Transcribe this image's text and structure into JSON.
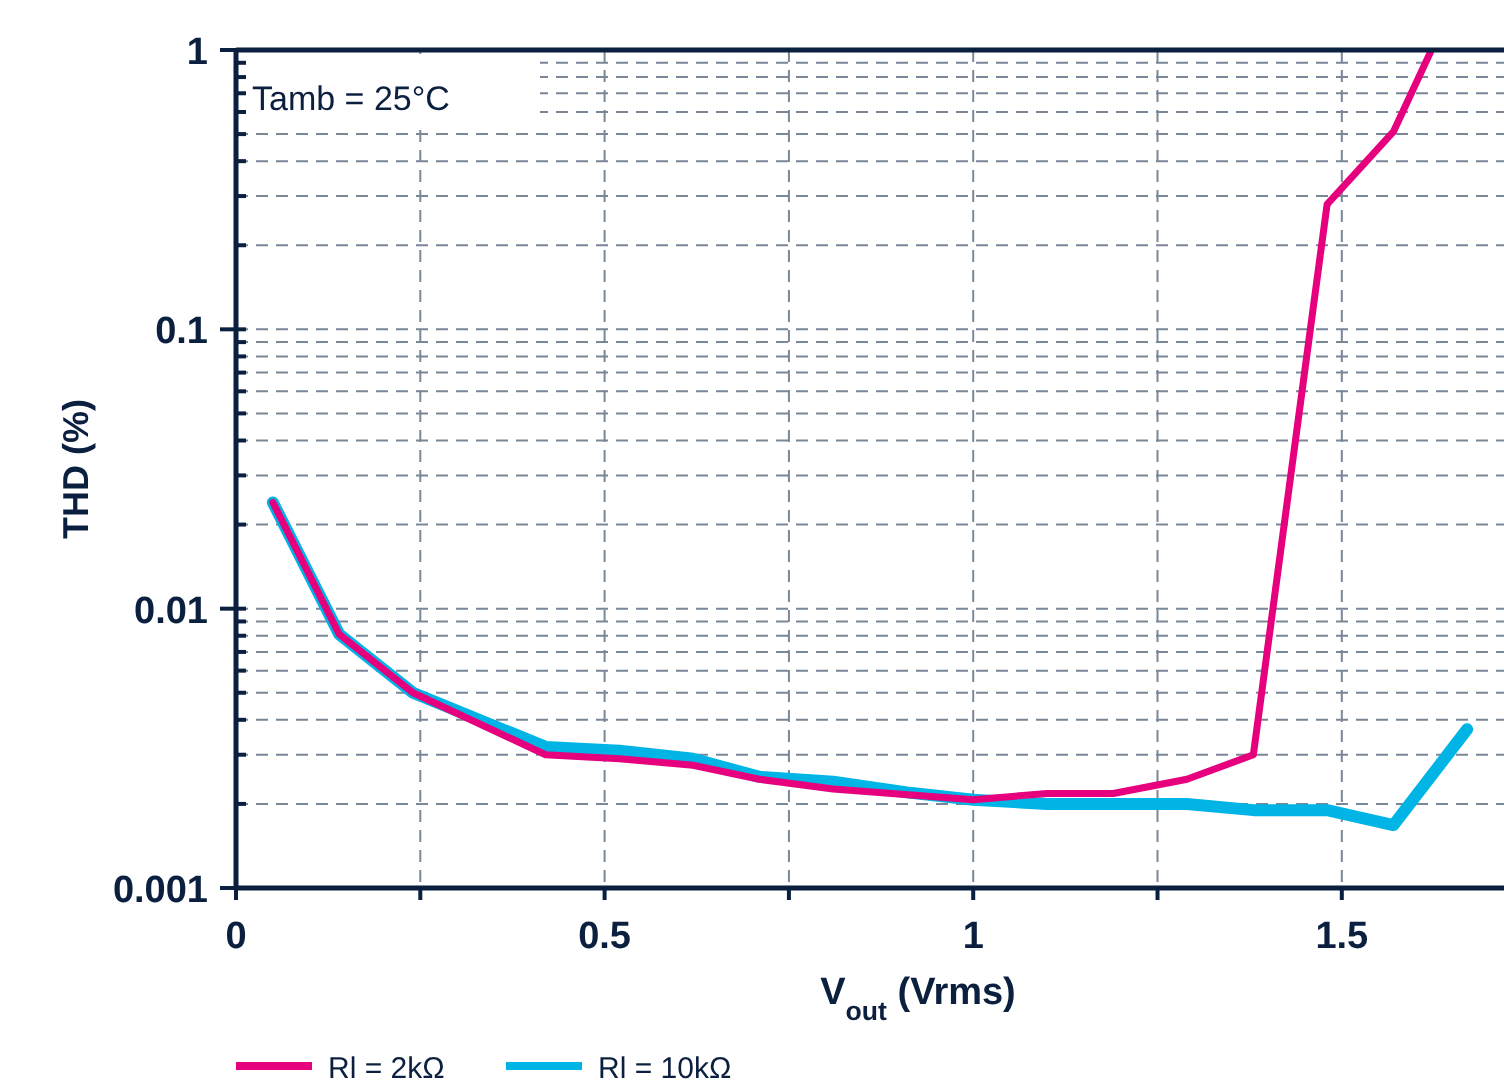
{
  "chart_data": {
    "type": "line",
    "xlabel": "V$_{out}$ (Vrms)",
    "ylabel": "THD (%)",
    "log": "y",
    "grid": true,
    "legend": "bottom",
    "marker": "none",
    "line_style": "solid",
    "annotations": [
      "Tamb = 25°C"
    ],
    "xlim": [
      0,
      1.72
    ],
    "xticks": [
      0,
      {
        "value": 0.25,
        "label": null
      },
      0.5,
      {
        "value": 0.75,
        "label": null
      },
      1,
      {
        "value": 1.25,
        "label": null
      },
      1.5
    ],
    "ylim": [
      0.001,
      1
    ],
    "yticks": [
      0.001,
      {
        "value": 0.002,
        "label": null
      },
      {
        "value": 0.003,
        "label": null
      },
      {
        "value": 0.004,
        "label": null
      },
      {
        "value": 0.005,
        "label": null
      },
      {
        "value": 0.006,
        "label": null
      },
      {
        "value": 0.007,
        "label": null
      },
      {
        "value": 0.008,
        "label": null
      },
      {
        "value": 0.009,
        "label": null
      },
      0.01,
      {
        "value": 0.02,
        "label": null
      },
      {
        "value": 0.03,
        "label": null
      },
      {
        "value": 0.04,
        "label": null
      },
      {
        "value": 0.05,
        "label": null
      },
      {
        "value": 0.06,
        "label": null
      },
      {
        "value": 0.07,
        "label": null
      },
      {
        "value": 0.08,
        "label": null
      },
      {
        "value": 0.09,
        "label": null
      },
      0.1,
      {
        "value": 0.2,
        "label": null
      },
      {
        "value": 0.3,
        "label": null
      },
      {
        "value": 0.4,
        "label": null
      },
      {
        "value": 0.5,
        "label": null
      },
      {
        "value": 0.6,
        "label": null
      },
      {
        "value": 0.7,
        "label": null
      },
      {
        "value": 0.8,
        "label": null
      },
      {
        "value": 0.9,
        "label": null
      },
      1
    ],
    "series": [
      {
        "name": "Rl = 2kΩ",
        "color": "#e6007e",
        "x": [
          0.05,
          0.14,
          0.24,
          0.42,
          0.52,
          0.62,
          0.71,
          0.81,
          1.0,
          1.1,
          1.19,
          1.29,
          1.38,
          1.48,
          1.57,
          1.62
        ],
        "values": [
          0.024,
          0.0081,
          0.005,
          0.003,
          0.0029,
          0.00275,
          0.00245,
          0.00226,
          0.00207,
          0.00218,
          0.00218,
          0.00245,
          0.003,
          0.28,
          0.51,
          0.98
        ]
      },
      {
        "name": "Rl = 10kΩ",
        "color": "#00b4e6",
        "x": [
          0.05,
          0.14,
          0.24,
          0.42,
          0.52,
          0.62,
          0.71,
          0.81,
          0.91,
          1.0,
          1.1,
          1.19,
          1.29,
          1.38,
          1.48,
          1.57,
          1.67
        ],
        "values": [
          0.024,
          0.0081,
          0.005,
          0.0032,
          0.0031,
          0.0029,
          0.0025,
          0.0024,
          0.0022,
          0.00207,
          0.002,
          0.002,
          0.002,
          0.0019,
          0.0019,
          0.00168,
          0.0037
        ]
      }
    ]
  }
}
